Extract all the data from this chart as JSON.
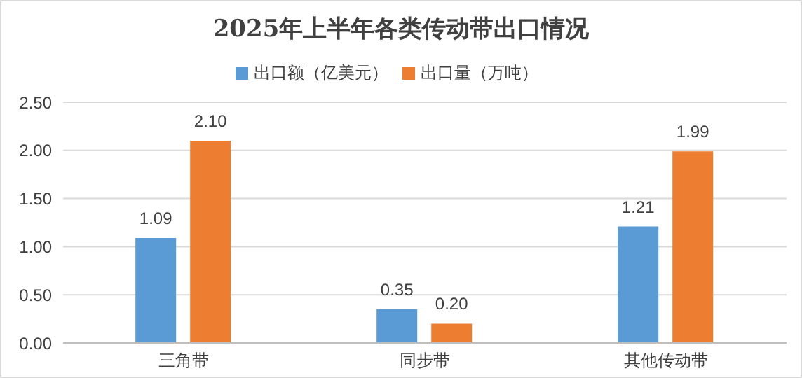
{
  "chart_data": {
    "type": "bar",
    "title": "2025年上半年各类传动带出口情况",
    "categories": [
      "三角带",
      "同步带",
      "其他传动带"
    ],
    "series": [
      {
        "name": "出口额（亿美元）",
        "color": "#5b9bd5",
        "values": [
          1.09,
          0.35,
          1.21
        ],
        "value_labels": [
          "1.09",
          "0.35",
          "1.21"
        ]
      },
      {
        "name": "出口量（万吨）",
        "color": "#ed7d31",
        "values": [
          2.1,
          0.2,
          1.99
        ],
        "value_labels": [
          "2.10",
          "0.20",
          "1.99"
        ]
      }
    ],
    "ylim": [
      0,
      2.5
    ],
    "yticks": [
      {
        "value": 0,
        "label": "0.00"
      },
      {
        "value": 0.5,
        "label": "0.50"
      },
      {
        "value": 1,
        "label": "1.00"
      },
      {
        "value": 1.5,
        "label": "1.50"
      },
      {
        "value": 2,
        "label": "2.00"
      },
      {
        "value": 2.5,
        "label": "2.50"
      }
    ],
    "grid": "y",
    "legend": "top"
  }
}
